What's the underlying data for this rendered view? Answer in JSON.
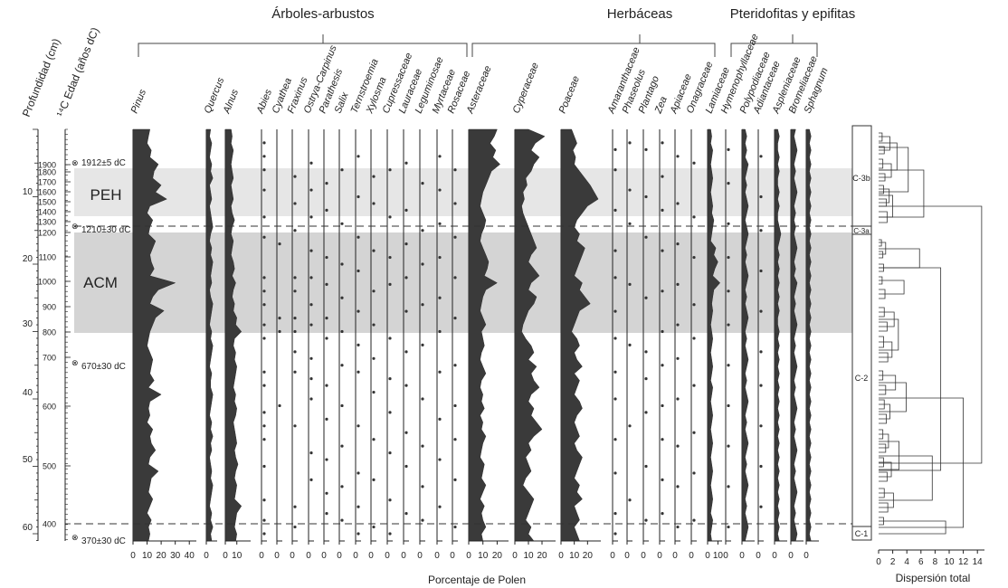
{
  "chart_data": {
    "type": "area",
    "groups": [
      {
        "label": "Árboles-arbustos"
      },
      {
        "label": "Herbáceas"
      },
      {
        "label": "Pteridofitas y epifitas"
      }
    ],
    "left_axes": {
      "depth_label": "Profundidad (cm)",
      "age_label": "¹⁴C Edad (años dC)",
      "depth_ticks": [
        "10",
        "20",
        "30",
        "40",
        "50",
        "60"
      ],
      "age_ticks": [
        "1900",
        "1800",
        "1700",
        "1600",
        "1500",
        "1400",
        "1300",
        "1200",
        "1100",
        "1000",
        "900",
        "800",
        "700",
        "600",
        "500",
        "400"
      ],
      "dates": [
        "1912±5 dC",
        "1210±30 dC",
        "670±30 dC",
        "370±30 dC"
      ]
    },
    "zones": [
      {
        "label": "PEH",
        "from_depth": 8,
        "to_depth": 16,
        "shade": "#e6e6e6"
      },
      {
        "label": "ACM",
        "from_depth": 18,
        "to_depth": 34,
        "shade": "#d4d4d4"
      }
    ],
    "dashed_lines_depth": [
      17,
      61
    ],
    "pollen_zones": [
      "C-3b",
      "C-3a",
      "C-2",
      "C-1"
    ],
    "xlabel": "Porcentaje de Polen",
    "dendro_xlabel": "Dispersión total",
    "dendro_ticks": [
      "0",
      "2",
      "4",
      "6",
      "8",
      "10",
      "12",
      "14"
    ],
    "taxa": [
      {
        "name": "Pinus",
        "ticks": [
          "0",
          "10",
          "20",
          "30",
          "40"
        ],
        "max": 45,
        "kind": "area",
        "values": [
          12,
          11,
          10,
          13,
          12,
          18,
          15,
          14,
          20,
          16,
          24,
          12,
          10,
          14,
          12,
          11,
          16,
          14,
          12,
          13,
          15,
          12,
          30,
          18,
          14,
          12,
          22,
          16,
          14,
          12,
          11,
          10,
          12,
          14,
          13,
          12,
          15,
          11,
          20,
          12,
          11,
          12,
          10,
          14,
          12,
          13,
          16,
          12,
          11,
          18,
          13,
          12,
          11,
          14,
          12,
          10,
          13,
          11,
          12,
          11
        ]
      },
      {
        "name": "Quercus",
        "ticks": [
          "0"
        ],
        "max": 10,
        "kind": "area",
        "values": [
          4,
          3,
          5,
          4,
          3,
          5,
          4,
          6,
          3,
          4,
          5,
          3,
          4,
          5,
          6,
          4,
          3,
          5,
          4,
          6,
          5,
          4,
          5,
          3,
          4,
          6,
          5,
          4,
          3,
          5,
          4,
          6,
          5,
          4,
          3,
          5,
          4,
          4,
          6,
          5,
          4,
          3,
          5,
          4,
          6,
          4,
          5,
          3,
          4,
          5,
          4,
          6,
          5,
          4,
          3,
          5,
          4,
          6,
          4,
          5
        ]
      },
      {
        "name": "Alnus",
        "ticks": [
          "0",
          "10"
        ],
        "max": 22,
        "kind": "area",
        "values": [
          5,
          6,
          5,
          7,
          6,
          5,
          6,
          7,
          5,
          6,
          7,
          5,
          6,
          8,
          6,
          5,
          7,
          6,
          5,
          7,
          8,
          6,
          9,
          7,
          6,
          8,
          7,
          10,
          9,
          14,
          8,
          7,
          9,
          8,
          10,
          9,
          8,
          7,
          9,
          8,
          10,
          9,
          7,
          8,
          9,
          10,
          8,
          9,
          11,
          9,
          8,
          10,
          9,
          8,
          14,
          10,
          9,
          8,
          10,
          9
        ]
      },
      {
        "name": "Abies",
        "kind": "dots",
        "dots": [
          2,
          4,
          6,
          9,
          13,
          16,
          22,
          24,
          26,
          29,
          31,
          36,
          38,
          42,
          44,
          46,
          50,
          55,
          58,
          60
        ]
      },
      {
        "name": "Cyathea",
        "kind": "dots",
        "dots": [
          17,
          28,
          30,
          41
        ]
      },
      {
        "name": "Fraxinus",
        "kind": "dots",
        "dots": [
          7,
          11,
          15,
          22,
          24,
          28,
          30,
          33,
          36,
          44,
          56,
          59
        ]
      },
      {
        "name": "Ostrya-Carpinus",
        "kind": "dots",
        "dots": [
          5,
          9,
          13,
          18,
          22,
          26,
          29,
          34,
          37,
          40,
          48,
          52
        ]
      },
      {
        "name": "Parathesis",
        "kind": "dots",
        "dots": [
          8,
          12,
          19,
          23,
          28,
          31,
          38,
          43,
          49,
          54,
          57
        ]
      },
      {
        "name": "Salix",
        "kind": "dots",
        "dots": [
          6,
          14,
          20,
          25,
          30,
          35,
          41,
          47,
          53,
          58
        ]
      },
      {
        "name": "Ternstroemia",
        "kind": "dots",
        "dots": [
          4,
          10,
          16,
          21,
          27,
          32,
          36,
          44,
          51,
          56,
          60
        ]
      },
      {
        "name": "Xylosma",
        "kind": "dots",
        "dots": [
          7,
          11,
          18,
          24,
          29,
          34,
          39,
          46,
          52,
          59
        ]
      },
      {
        "name": "Cupressaceae",
        "kind": "dots",
        "dots": [
          6,
          13,
          19,
          23,
          31,
          37,
          42,
          48,
          55,
          60
        ]
      },
      {
        "name": "Lauraceae",
        "kind": "dots",
        "dots": [
          5,
          12,
          17,
          22,
          27,
          33,
          38,
          45,
          50,
          57
        ]
      },
      {
        "name": "Leguminosae",
        "kind": "dots",
        "dots": [
          8,
          15,
          20,
          26,
          32,
          40,
          47,
          53,
          58
        ]
      },
      {
        "name": "Myrtaceae",
        "kind": "dots",
        "dots": [
          4,
          9,
          14,
          19,
          25,
          30,
          36,
          43,
          49,
          56
        ]
      },
      {
        "name": "Rosaceae",
        "kind": "dots",
        "dots": [
          6,
          11,
          16,
          22,
          28,
          35,
          41,
          46,
          52,
          59
        ]
      },
      {
        "name": "Asteraceae",
        "ticks": [
          "0",
          "10",
          "20"
        ],
        "max": 28,
        "kind": "area",
        "values": [
          20,
          18,
          15,
          19,
          17,
          22,
          16,
          14,
          12,
          10,
          9,
          8,
          10,
          12,
          11,
          9,
          8,
          10,
          12,
          14,
          13,
          11,
          20,
          12,
          10,
          9,
          8,
          10,
          12,
          9,
          10,
          11,
          9,
          8,
          10,
          12,
          9,
          8,
          10,
          9,
          11,
          8,
          10,
          9,
          12,
          10,
          9,
          8,
          11,
          10,
          9,
          12,
          10,
          8,
          11,
          9,
          10,
          12,
          9,
          10
        ]
      },
      {
        "name": "Cyperaceae",
        "ticks": [
          "0",
          "10",
          "20"
        ],
        "max": 30,
        "kind": "area",
        "values": [
          10,
          22,
          15,
          12,
          18,
          14,
          12,
          8,
          9,
          6,
          7,
          5,
          6,
          8,
          10,
          12,
          14,
          16,
          12,
          10,
          14,
          18,
          12,
          10,
          16,
          14,
          10,
          8,
          6,
          5,
          8,
          12,
          14,
          10,
          16,
          12,
          14,
          18,
          12,
          10,
          14,
          12,
          16,
          20,
          14,
          10,
          12,
          8,
          10,
          12,
          8,
          6,
          10,
          14,
          12,
          10,
          8,
          12,
          10,
          14
        ]
      },
      {
        "name": "Poaceae",
        "ticks": [
          "0",
          "10",
          "20"
        ],
        "max": 30,
        "kind": "area",
        "values": [
          8,
          10,
          12,
          9,
          11,
          10,
          14,
          18,
          22,
          25,
          28,
          20,
          16,
          12,
          10,
          14,
          12,
          18,
          16,
          14,
          12,
          10,
          16,
          14,
          18,
          22,
          14,
          12,
          10,
          8,
          12,
          14,
          10,
          12,
          16,
          10,
          14,
          12,
          10,
          14,
          16,
          12,
          10,
          12,
          14,
          10,
          12,
          16,
          14,
          12,
          10,
          14,
          12,
          16,
          10,
          12,
          14,
          10,
          12,
          14
        ]
      },
      {
        "name": "Amaranthaceae",
        "kind": "dots",
        "dots": [
          3,
          6,
          12,
          18,
          22,
          27,
          31,
          36,
          40,
          46,
          51,
          57,
          60
        ]
      },
      {
        "name": "Phaseolus",
        "kind": "dots",
        "dots": [
          2,
          9,
          14,
          23,
          32,
          44,
          55
        ]
      },
      {
        "name": "Plantago",
        "kind": "dots",
        "dots": [
          3,
          10,
          16,
          25,
          33,
          37,
          42,
          50,
          58
        ]
      },
      {
        "name": "Zea",
        "kind": "dots",
        "dots": [
          2,
          7,
          12,
          18,
          24,
          30,
          35,
          41,
          46,
          52,
          57
        ]
      },
      {
        "name": "Apiaceae",
        "kind": "dots",
        "dots": [
          4,
          11,
          17,
          23,
          29,
          34,
          40,
          47,
          53,
          59
        ]
      },
      {
        "name": "Onagraceae",
        "kind": "dots",
        "dots": [
          5,
          13,
          19,
          26,
          31,
          38,
          45,
          51,
          58
        ]
      },
      {
        "name": "Lamiaceae",
        "ticks": [
          "0",
          "10"
        ],
        "max": 14,
        "kind": "area",
        "values": [
          3,
          4,
          3,
          5,
          4,
          3,
          4,
          5,
          4,
          3,
          4,
          5,
          4,
          6,
          5,
          4,
          3,
          8,
          6,
          10,
          7,
          5,
          12,
          6,
          5,
          4,
          5,
          4,
          3,
          4,
          5,
          4,
          3,
          4,
          5,
          4,
          3,
          5,
          4,
          3,
          4,
          5,
          4,
          3,
          4,
          5,
          4,
          3,
          4,
          5,
          4,
          3,
          4,
          5,
          4,
          3,
          5,
          4,
          3,
          4
        ]
      },
      {
        "name": "Hymenophyllaceae",
        "kind": "dots",
        "dots": [
          3,
          8,
          14,
          19,
          24,
          29,
          35,
          41,
          47,
          53,
          59
        ]
      },
      {
        "name": "Polypodiaceae",
        "ticks": [
          "0"
        ],
        "max": 8,
        "kind": "area",
        "values": [
          2,
          3,
          2,
          3,
          2,
          4,
          3,
          2,
          3,
          2,
          3,
          4,
          3,
          2,
          3,
          4,
          3,
          2,
          3,
          2,
          3,
          4,
          3,
          2,
          3,
          2,
          3,
          4,
          3,
          2,
          3,
          2,
          3,
          4,
          3,
          2,
          3,
          2,
          3,
          4,
          3,
          2,
          3,
          2,
          3,
          4,
          3,
          2,
          3,
          2,
          3,
          4,
          3,
          2,
          3,
          2,
          3,
          4,
          3,
          2
        ]
      },
      {
        "name": "Adiantaceae",
        "kind": "dots",
        "dots": [
          4,
          10,
          15,
          21,
          27,
          33,
          38,
          44,
          50,
          56
        ]
      },
      {
        "name": "Aspleniaceae",
        "ticks": [
          "0"
        ],
        "max": 8,
        "kind": "area",
        "values": [
          2,
          3,
          2,
          2,
          3,
          2,
          3,
          2,
          2,
          3,
          2,
          3,
          2,
          2,
          3,
          4,
          3,
          2,
          3,
          2,
          3,
          2,
          3,
          2,
          3,
          2,
          3,
          2,
          2,
          3,
          2,
          3,
          2,
          3,
          2,
          3,
          2,
          3,
          2,
          3,
          2,
          3,
          2,
          3,
          2,
          3,
          2,
          3,
          2,
          3,
          2,
          3,
          2,
          3,
          2,
          3,
          2,
          3,
          2,
          3
        ]
      },
      {
        "name": "Bromeliaceae",
        "ticks": [
          "0"
        ],
        "max": 8,
        "kind": "area",
        "values": [
          3,
          2,
          3,
          4,
          3,
          2,
          3,
          2,
          3,
          4,
          3,
          2,
          3,
          2,
          3,
          2,
          3,
          4,
          3,
          2,
          3,
          2,
          4,
          3,
          2,
          3,
          2,
          3,
          4,
          3,
          2,
          3,
          2,
          3,
          4,
          3,
          2,
          3,
          2,
          3,
          4,
          3,
          2,
          3,
          2,
          3,
          4,
          3,
          2,
          3,
          2,
          3,
          4,
          3,
          2,
          3,
          2,
          3,
          4,
          3
        ]
      },
      {
        "name": "Sphagnum",
        "ticks": [
          "0"
        ],
        "max": 8,
        "kind": "area",
        "values": [
          2,
          3,
          2,
          3,
          2,
          3,
          2,
          3,
          2,
          3,
          2,
          3,
          2,
          3,
          2,
          3,
          2,
          3,
          2,
          3,
          2,
          3,
          2,
          3,
          2,
          3,
          2,
          3,
          2,
          3,
          2,
          3,
          2,
          3,
          2,
          3,
          2,
          3,
          2,
          3,
          2,
          3,
          2,
          3,
          2,
          3,
          2,
          3,
          2,
          3,
          2,
          3,
          2,
          3,
          2,
          3,
          2,
          3,
          2,
          3
        ]
      }
    ]
  }
}
